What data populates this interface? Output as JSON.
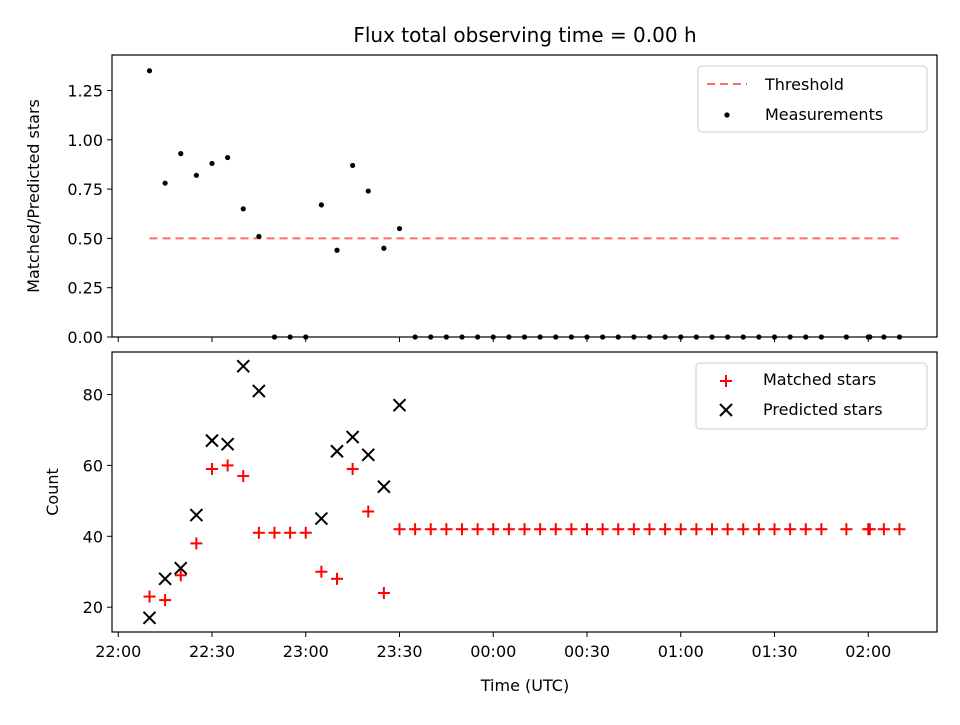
{
  "chart_data": {
    "type": "scatter",
    "title": "Flux total observing time = 0.00 h",
    "xlabel": "Time (UTC)",
    "x_ticks": [
      "22:00",
      "22:30",
      "23:00",
      "23:30",
      "00:00",
      "00:30",
      "01:00",
      "01:30",
      "02:00"
    ],
    "x_tick_values": [
      0,
      30,
      60,
      90,
      120,
      150,
      180,
      210,
      240
    ],
    "xlim": [
      -2,
      262
    ],
    "x_times": [
      "22:10",
      "22:15",
      "22:20",
      "22:25",
      "22:30",
      "22:35",
      "22:40",
      "22:45",
      "22:50",
      "22:55",
      "23:00",
      "23:05",
      "23:10",
      "23:15",
      "23:20",
      "23:25",
      "23:30",
      "23:35",
      "23:40",
      "23:45",
      "23:50",
      "23:55",
      "00:00",
      "00:05",
      "00:10",
      "00:15",
      "00:20",
      "00:25",
      "00:30",
      "00:35",
      "00:40",
      "00:45",
      "00:50",
      "00:55",
      "01:00",
      "01:05",
      "01:10",
      "01:15",
      "01:20",
      "01:25",
      "01:30",
      "01:35",
      "01:40",
      "01:45",
      "01:53",
      "02:00",
      "02:00",
      "02:05",
      "02:10"
    ],
    "x": [
      10,
      15,
      20,
      25,
      30,
      35,
      40,
      45,
      50,
      55,
      60,
      65,
      70,
      75,
      80,
      85,
      90,
      95,
      100,
      105,
      110,
      115,
      120,
      125,
      130,
      135,
      140,
      145,
      150,
      155,
      160,
      165,
      170,
      175,
      180,
      185,
      190,
      195,
      200,
      205,
      210,
      215,
      220,
      225,
      233,
      240,
      240.5,
      245,
      250
    ],
    "panels": [
      {
        "ylabel": "Matched/Predicted stars",
        "ylim": [
          0,
          1.43
        ],
        "y_ticks": [
          "0.00",
          "0.25",
          "0.50",
          "0.75",
          "1.00",
          "1.25"
        ],
        "y_tick_values": [
          0,
          0.25,
          0.5,
          0.75,
          1.0,
          1.25
        ],
        "threshold": {
          "name": "Threshold",
          "value": 0.5,
          "x_range": [
            10,
            250
          ],
          "color": "#ff6b6b"
        },
        "series": [
          {
            "name": "Measurements",
            "marker": "dot",
            "color": "#000000",
            "values": [
              1.35,
              0.78,
              0.93,
              0.82,
              0.88,
              0.91,
              0.65,
              0.51,
              0,
              0,
              0,
              0.67,
              0.44,
              0.87,
              0.74,
              0.45,
              0.55,
              0,
              0,
              0,
              0,
              0,
              0,
              0,
              0,
              0,
              0,
              0,
              0,
              0,
              0,
              0,
              0,
              0,
              0,
              0,
              0,
              0,
              0,
              0,
              0,
              0,
              0,
              0,
              0,
              0,
              0,
              0,
              0
            ]
          }
        ],
        "legend_position": "top-right"
      },
      {
        "ylabel": "Count",
        "ylim": [
          13,
          92
        ],
        "y_ticks": [
          "20",
          "40",
          "60",
          "80"
        ],
        "y_tick_values": [
          20,
          40,
          60,
          80
        ],
        "series": [
          {
            "name": "Matched stars",
            "marker": "plus",
            "color": "#ff0000",
            "values": [
              23,
              22,
              29,
              38,
              59,
              60,
              57,
              41,
              41,
              41,
              41,
              30,
              28,
              59,
              47,
              24,
              42,
              42,
              42,
              42,
              42,
              42,
              42,
              42,
              42,
              42,
              42,
              42,
              42,
              42,
              42,
              42,
              42,
              42,
              42,
              42,
              42,
              42,
              42,
              42,
              42,
              42,
              42,
              42,
              42,
              42,
              42,
              42,
              42
            ]
          },
          {
            "name": "Predicted stars",
            "marker": "x",
            "color": "#000000",
            "values": [
              17,
              28,
              31,
              46,
              67,
              66,
              88,
              81,
              null,
              null,
              null,
              45,
              64,
              68,
              63,
              54,
              77,
              null,
              null,
              null,
              null,
              null,
              null,
              null,
              null,
              null,
              null,
              null,
              null,
              null,
              null,
              null,
              null,
              null,
              null,
              null,
              null,
              null,
              null,
              null,
              null,
              null,
              null,
              null,
              null,
              null,
              null,
              null,
              null
            ]
          }
        ],
        "legend_position": "top-right"
      }
    ]
  }
}
